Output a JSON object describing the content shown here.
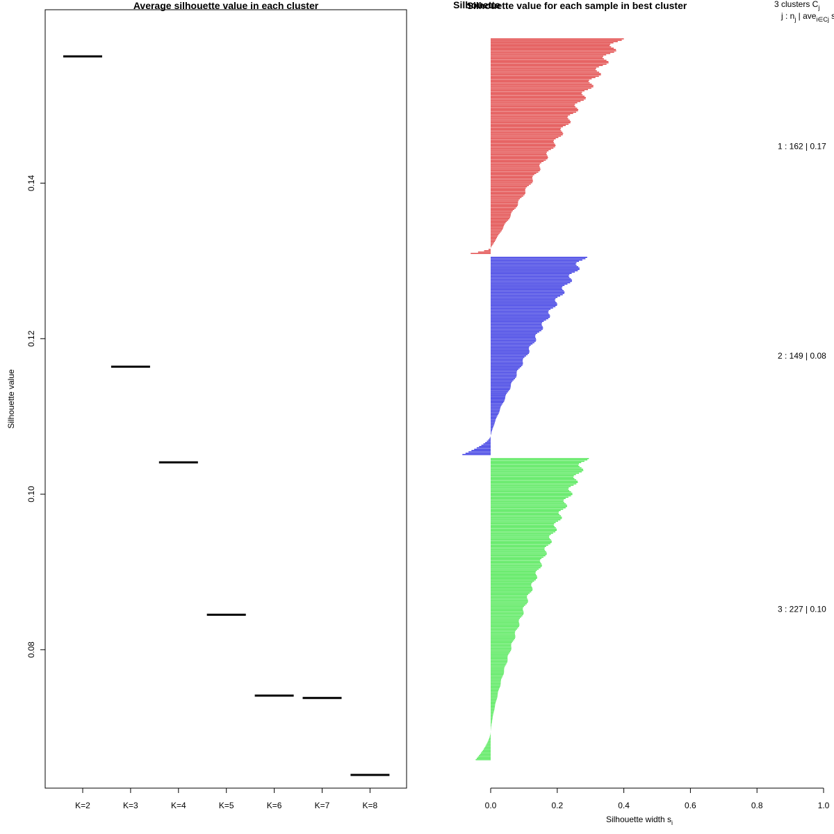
{
  "chart_data": [
    {
      "type": "scatter",
      "title": "Average silhouette value in each cluster",
      "xlabel": "",
      "ylabel": "Silhouette value",
      "categories": [
        "K=2",
        "K=3",
        "K=4",
        "K=5",
        "K=6",
        "K=7",
        "K=8"
      ],
      "values": [
        0.1563,
        0.1164,
        0.1041,
        0.0845,
        0.0741,
        0.0738,
        0.0639
      ],
      "ylim": [
        0.0622,
        0.1623
      ],
      "yticks": [
        "0.08",
        "0.10",
        "0.12",
        "0.14"
      ],
      "marker": "horizontal-segment",
      "color": "#000000"
    },
    {
      "type": "bar",
      "orientation": "horizontal",
      "title": "Silhouette value for each sample in best cluster",
      "overlap_title": "Silhouette",
      "xlabel": "Silhouette width s",
      "xlabel_sub": "i",
      "xlim": [
        0.0,
        1.0
      ],
      "xticks": [
        "0.0",
        "0.2",
        "0.4",
        "0.6",
        "0.8",
        "1.0"
      ],
      "legend_header": {
        "line1": "3  clusters  C",
        "line1_sub": "j",
        "line2": "j :  n",
        "line2_sub1": "j",
        "line2_mid": " | ave",
        "line2_sub2": "i∈Cj",
        "line2_end": "  s"
      },
      "series": [
        {
          "name": "cluster 1",
          "label": "1 :   162  |  0.17",
          "n": 162,
          "avg": 0.17,
          "max": 0.4,
          "min": -0.06,
          "neg_count": 4,
          "color": "#DF3A3A",
          "shape": 1.0
        },
        {
          "name": "cluster 2",
          "label": "2 :   149  |  0.08",
          "n": 149,
          "avg": 0.08,
          "max": 0.29,
          "min": -0.085,
          "neg_count": 14,
          "color": "#2828E0",
          "shape": 1.2
        },
        {
          "name": "cluster 3",
          "label": "3 :   227  |  0.10",
          "n": 227,
          "avg": 0.1,
          "max": 0.295,
          "min": -0.045,
          "neg_count": 21,
          "color": "#44E64A",
          "shape": 1.3
        }
      ]
    }
  ]
}
